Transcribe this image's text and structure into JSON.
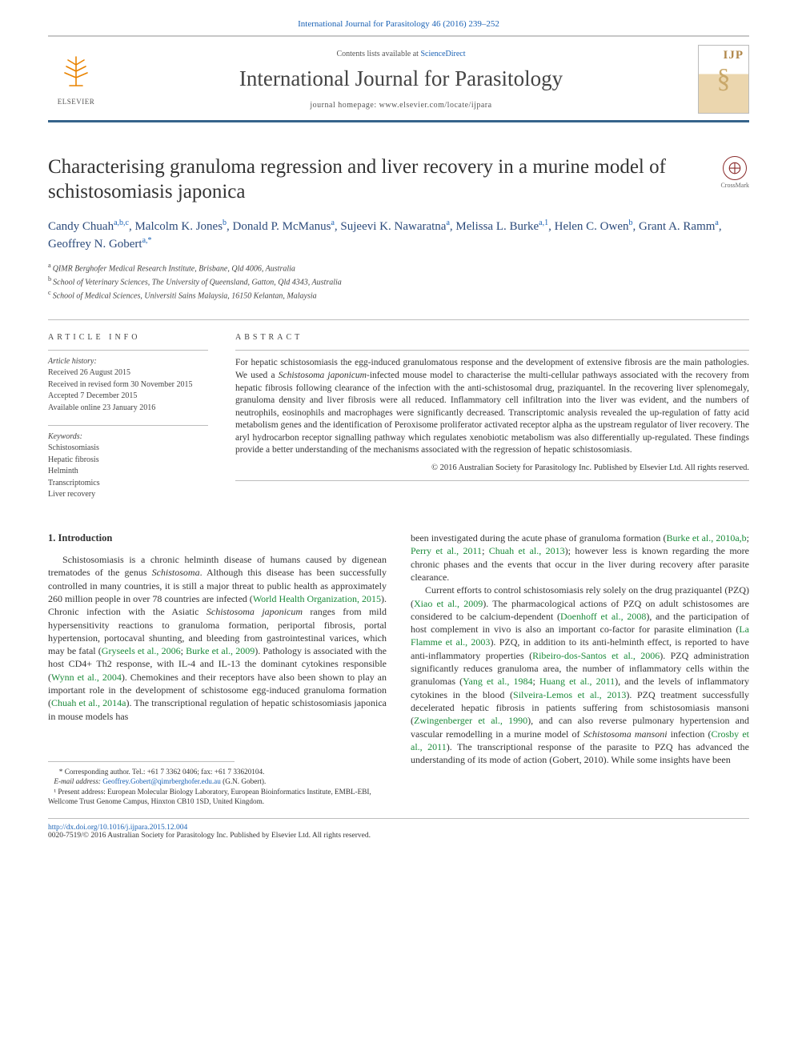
{
  "citation": "International Journal for Parasitology 46 (2016) 239–252",
  "masthead": {
    "contents_prefix": "Contents lists available at ",
    "contents_link": "ScienceDirect",
    "journal": "International Journal for Parasitology",
    "homepage_prefix": "journal homepage: ",
    "homepage": "www.elsevier.com/locate/ijpara",
    "publisher": "ELSEVIER",
    "cover_abbrev": "IJP"
  },
  "article": {
    "title": "Characterising granuloma regression and liver recovery in a murine model of schistosomiasis japonica",
    "crossmark": "CrossMark"
  },
  "authors_html": "Candy Chuah<sup>a,b,c</sup>, Malcolm K. Jones<sup>b</sup>, Donald P. McManus<sup>a</sup>, Sujeevi K. Nawaratna<sup>a</sup>, Melissa L. Burke<sup>a,1</sup>, Helen C. Owen<sup>b</sup>, Grant A. Ramm<sup>a</sup>, Geoffrey N. Gobert<sup>a,*</sup>",
  "affiliations": [
    {
      "tag": "a",
      "text": "QIMR Berghofer Medical Research Institute, Brisbane, Qld 4006, Australia"
    },
    {
      "tag": "b",
      "text": "School of Veterinary Sciences, The University of Queensland, Gatton, Qld 4343, Australia"
    },
    {
      "tag": "c",
      "text": "School of Medical Sciences, Universiti Sains Malaysia, 16150 Kelantan, Malaysia"
    }
  ],
  "info": {
    "heading": "ARTICLE INFO",
    "history_label": "Article history:",
    "history": [
      "Received 26 August 2015",
      "Received in revised form 30 November 2015",
      "Accepted 7 December 2015",
      "Available online 23 January 2016"
    ],
    "keywords_label": "Keywords:",
    "keywords": [
      "Schistosomiasis",
      "Hepatic fibrosis",
      "Helminth",
      "Transcriptomics",
      "Liver recovery"
    ]
  },
  "abstract": {
    "heading": "ABSTRACT",
    "text": "For hepatic schistosomiasis the egg-induced granulomatous response and the development of extensive fibrosis are the main pathologies. We used a Schistosoma japonicum-infected mouse model to characterise the multi-cellular pathways associated with the recovery from hepatic fibrosis following clearance of the infection with the anti-schistosomal drug, praziquantel. In the recovering liver splenomegaly, granuloma density and liver fibrosis were all reduced. Inflammatory cell infiltration into the liver was evident, and the numbers of neutrophils, eosinophils and macrophages were significantly decreased. Transcriptomic analysis revealed the up-regulation of fatty acid metabolism genes and the identification of Peroxisome proliferator activated receptor alpha as the upstream regulator of liver recovery. The aryl hydrocarbon receptor signalling pathway which regulates xenobiotic metabolism was also differentially up-regulated. These findings provide a better understanding of the mechanisms associated with the regression of hepatic schistosomiasis.",
    "copyright": "© 2016 Australian Society for Parasitology Inc. Published by Elsevier Ltd. All rights reserved."
  },
  "body": {
    "intro_heading": "1. Introduction",
    "para1": "Schistosomiasis is a chronic helminth disease of humans caused by digenean trematodes of the genus Schistosoma. Although this disease has been successfully controlled in many countries, it is still a major threat to public health as approximately 260 million people in over 78 countries are infected (World Health Organization, 2015). Chronic infection with the Asiatic Schistosoma japonicum ranges from mild hypersensitivity reactions to granuloma formation, periportal fibrosis, portal hypertension, portocaval shunting, and bleeding from gastrointestinal varices, which may be fatal (Gryseels et al., 2006; Burke et al., 2009). Pathology is associated with the host CD4+ Th2 response, with IL-4 and IL-13 the dominant cytokines responsible (Wynn et al., 2004). Chemokines and their receptors have also been shown to play an important role in the development of schistosome egg-induced granuloma formation (Chuah et al., 2014a). The transcriptional regulation of hepatic schistosomiasis japonica in mouse models has",
    "para2": "been investigated during the acute phase of granuloma formation (Burke et al., 2010a,b; Perry et al., 2011; Chuah et al., 2013); however less is known regarding the more chronic phases and the events that occur in the liver during recovery after parasite clearance.",
    "para3": "Current efforts to control schistosomiasis rely solely on the drug praziquantel (PZQ) (Xiao et al., 2009). The pharmacological actions of PZQ on adult schistosomes are considered to be calcium-dependent (Doenhoff et al., 2008), and the participation of host complement in vivo is also an important co-factor for parasite elimination (La Flamme et al., 2003). PZQ, in addition to its anti-helminth effect, is reported to have anti-inflammatory properties (Ribeiro-dos-Santos et al., 2006). PZQ administration significantly reduces granuloma area, the number of inflammatory cells within the granulomas (Yang et al., 1984; Huang et al., 2011), and the levels of inflammatory cytokines in the blood (Silveira-Lemos et al., 2013). PZQ treatment successfully decelerated hepatic fibrosis in patients suffering from schistosomiasis mansoni (Zwingenberger et al., 1990), and can also reverse pulmonary hypertension and vascular remodelling in a murine model of Schistosoma mansoni infection (Crosby et al., 2011). The transcriptional response of the parasite to PZQ has advanced the understanding of its mode of action (Gobert, 2010). While some insights have been"
  },
  "footnotes": {
    "corresponding": "* Corresponding author. Tel.: +61 7 3362 0406; fax: +61 7 33620104.",
    "email_label": "E-mail address:",
    "email": "Geoffrey.Gobert@qimrberghofer.edu.au",
    "email_author": "(G.N. Gobert).",
    "present_address": "¹ Present address: European Molecular Biology Laboratory, European Bioinformatics Institute, EMBL-EBI, Wellcome Trust Genome Campus, Hinxton CB10 1SD, United Kingdom."
  },
  "footer": {
    "doi": "http://dx.doi.org/10.1016/j.ijpara.2015.12.004",
    "issn_line": "0020-7519/© 2016 Australian Society for Parasitology Inc. Published by Elsevier Ltd. All rights reserved."
  },
  "colors": {
    "link_blue": "#1b62b5",
    "ref_green": "#1b8a3a",
    "accent_orange": "#e98300",
    "rule_gray": "#bdbdbd",
    "header_border": "#36648b"
  }
}
